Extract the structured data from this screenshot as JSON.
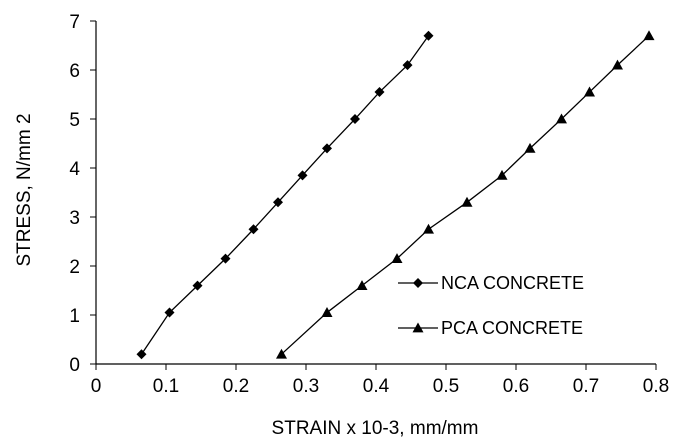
{
  "chart_data": {
    "type": "line",
    "xlabel": "STRAIN x 10-3, mm/mm",
    "ylabel": "STRESS, N/mm 2",
    "xlim": [
      0,
      0.8
    ],
    "ylim": [
      0,
      7
    ],
    "xticks": [
      "0",
      "0.1",
      "0.2",
      "0.3",
      "0.4",
      "0.5",
      "0.6",
      "0.7",
      "0.8"
    ],
    "yticks": [
      "0",
      "1",
      "2",
      "3",
      "4",
      "5",
      "6",
      "7"
    ],
    "grid": false,
    "legend_position": "right",
    "series": [
      {
        "name": "NCA CONCRETE",
        "marker": "diamond",
        "color": "#000000",
        "x": [
          0.065,
          0.105,
          0.145,
          0.185,
          0.225,
          0.26,
          0.295,
          0.33,
          0.37,
          0.405,
          0.445,
          0.475
        ],
        "y": [
          0.2,
          1.05,
          1.6,
          2.15,
          2.75,
          3.3,
          3.85,
          4.4,
          5.0,
          5.55,
          6.1,
          6.7
        ]
      },
      {
        "name": "PCA CONCRETE",
        "marker": "triangle",
        "color": "#000000",
        "x": [
          0.265,
          0.33,
          0.38,
          0.43,
          0.475,
          0.53,
          0.58,
          0.62,
          0.665,
          0.705,
          0.745,
          0.79
        ],
        "y": [
          0.2,
          1.05,
          1.6,
          2.15,
          2.75,
          3.3,
          3.85,
          4.4,
          5.0,
          5.55,
          6.1,
          6.7
        ]
      }
    ]
  }
}
